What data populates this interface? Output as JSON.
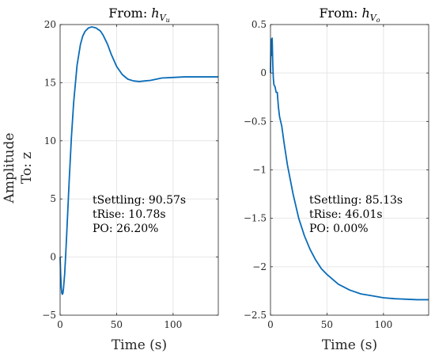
{
  "ylabel_main": "Amplitude",
  "ylabel_sub": "To: z",
  "chart_data": [
    {
      "type": "line",
      "title": "From: hVu",
      "title_text": "From:",
      "title_sym": "h",
      "title_sub": "Vu",
      "xlabel": "Time (s)",
      "xlim": [
        0,
        140
      ],
      "ylim": [
        -5,
        20
      ],
      "xticks": [
        0,
        50,
        100
      ],
      "yticks": [
        -5,
        0,
        5,
        10,
        15,
        20
      ],
      "grid": true,
      "annotations": [
        "tSettling: 90.57s",
        "tRise: 10.78s",
        "PO: 26.20%"
      ],
      "series": [
        {
          "color": "#0a6cb8",
          "x": [
            0,
            0.5,
            1,
            1.5,
            2,
            2.5,
            3,
            4,
            5,
            6,
            8,
            10,
            12,
            15,
            18,
            20,
            22,
            25,
            28,
            30,
            32,
            34,
            35,
            36,
            38,
            40,
            42,
            45,
            50,
            55,
            60,
            65,
            70,
            75,
            80,
            85,
            90,
            100,
            110,
            120,
            130,
            140
          ],
          "y": [
            0,
            -1.5,
            -2.6,
            -3.1,
            -3.2,
            -3.1,
            -2.7,
            -1.5,
            0.3,
            2.3,
            6.5,
            10.3,
            13.3,
            16.5,
            18.3,
            19.0,
            19.4,
            19.7,
            19.8,
            19.75,
            19.7,
            19.55,
            19.5,
            19.4,
            19.1,
            18.7,
            18.3,
            17.5,
            16.4,
            15.7,
            15.3,
            15.15,
            15.1,
            15.15,
            15.2,
            15.3,
            15.4,
            15.45,
            15.5,
            15.5,
            15.5,
            15.5
          ]
        }
      ]
    },
    {
      "type": "line",
      "title": "From: hVo",
      "title_text": "From:",
      "title_sym": "h",
      "title_sub": "Vo",
      "xlabel": "Time (s)",
      "xlim": [
        0,
        140
      ],
      "ylim": [
        -2.5,
        0.5
      ],
      "xticks": [
        0,
        50,
        100
      ],
      "yticks": [
        -2.5,
        -2,
        -1.5,
        -1,
        -0.5,
        0,
        0.5
      ],
      "grid": true,
      "annotations": [
        "tSettling: 85.13s",
        "tRise: 46.01s",
        "PO: 0.00%"
      ],
      "series": [
        {
          "color": "#0a6cb8",
          "x": [
            0,
            0.3,
            0.6,
            1.0,
            1.5,
            2.0,
            2.5,
            3.0,
            4.0,
            5.0,
            6.0,
            7.0,
            8.0,
            10,
            12,
            15,
            20,
            25,
            30,
            35,
            40,
            45,
            50,
            60,
            70,
            80,
            90,
            100,
            110,
            120,
            130,
            140
          ],
          "y": [
            0,
            0.25,
            0.35,
            0.18,
            0.36,
            0.1,
            -0.05,
            -0.12,
            -0.14,
            -0.2,
            -0.2,
            -0.35,
            -0.45,
            -0.55,
            -0.72,
            -0.95,
            -1.25,
            -1.5,
            -1.68,
            -1.82,
            -1.93,
            -2.02,
            -2.08,
            -2.18,
            -2.24,
            -2.28,
            -2.3,
            -2.32,
            -2.33,
            -2.335,
            -2.34,
            -2.34
          ]
        }
      ]
    }
  ]
}
